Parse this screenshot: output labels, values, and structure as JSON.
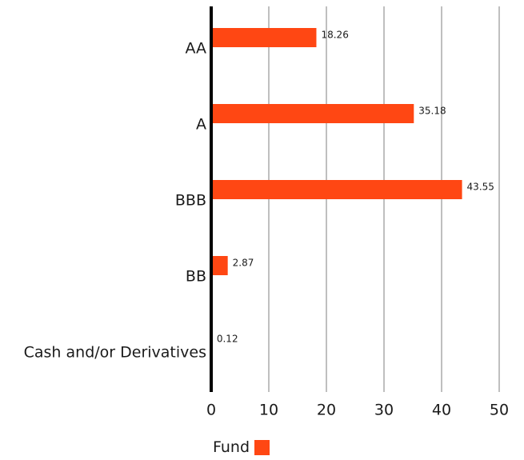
{
  "chart_data": {
    "type": "bar",
    "orientation": "horizontal",
    "categories": [
      "AA",
      "A",
      "BBB",
      "BB",
      "Cash and/or Derivatives"
    ],
    "series": [
      {
        "name": "Fund",
        "values": [
          18.26,
          35.18,
          43.55,
          2.87,
          0.12
        ]
      }
    ],
    "data_labels": [
      "18.26",
      "35.18",
      "43.55",
      "2.87",
      "0.12"
    ],
    "xlim": [
      0,
      50
    ],
    "x_ticks": [
      "0",
      "10",
      "20",
      "30",
      "40",
      "50"
    ],
    "grid": "vertical",
    "legend_position": "bottom",
    "colors": {
      "bar": "#ff4713",
      "grid": "#bfbfbf",
      "axis": "#000000"
    }
  },
  "legend": {
    "label": "Fund"
  }
}
